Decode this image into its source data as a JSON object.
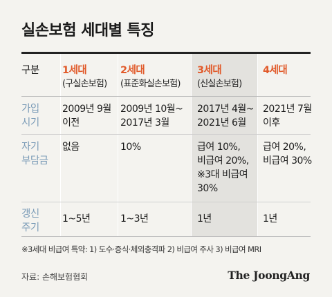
{
  "title": "실손보험 세대별 특징",
  "headers": {
    "label": "구분",
    "gens": [
      {
        "name": "1세대",
        "sub": "(구실손보험)"
      },
      {
        "name": "2세대",
        "sub": "(표준화실손보험)"
      },
      {
        "name": "3세대",
        "sub": "(신실손보험)"
      },
      {
        "name": "4세대",
        "sub": ""
      }
    ]
  },
  "rows": [
    {
      "label": [
        "가입",
        "시기"
      ],
      "cells": [
        [
          "2009년 9월",
          "이전"
        ],
        [
          "2009년 10월~",
          "2017년 3월"
        ],
        [
          "2017년 4월~",
          "2021년 6월"
        ],
        [
          "2021년 7월",
          "이후"
        ]
      ]
    },
    {
      "label": [
        "자기",
        "부담금"
      ],
      "cells": [
        [
          "없음"
        ],
        [
          "10%"
        ],
        [
          "급여 10%,",
          "비급여 20%,",
          "※3대 비급여",
          "30%"
        ],
        [
          "급여 20%,",
          "비급여 30%"
        ]
      ]
    },
    {
      "label": [
        "갱신",
        "주기"
      ],
      "cells": [
        [
          "1~5년"
        ],
        [
          "1~3년"
        ],
        [
          "1년"
        ],
        [
          "1년"
        ]
      ]
    }
  ],
  "note": "※3세대 비급여 특약: 1) 도수·증식·체외충격파 2) 비급여 주사 3) 비급여 MRI",
  "source": "자료: 손해보험협회",
  "brand": "The JoongAng",
  "colors": {
    "accent": "#e15a2a",
    "rowhead": "#7a9bb7",
    "highlight_col": "#e3e2de"
  }
}
